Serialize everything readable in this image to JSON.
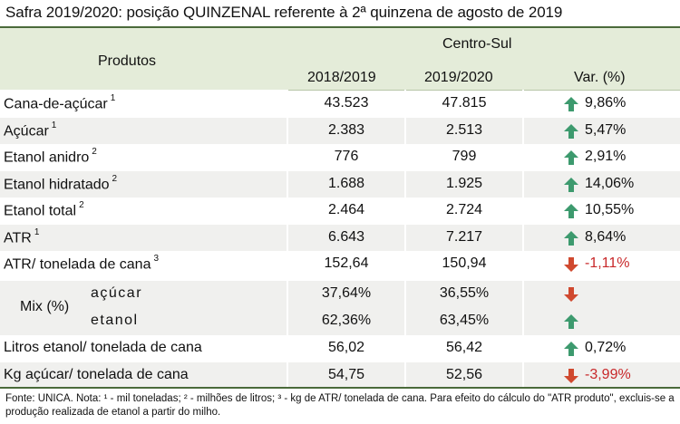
{
  "title": "Safra 2019/2020: posição QUINZENAL referente à 2ª quinzena de agosto de 2019",
  "header": {
    "produtos": "Produtos",
    "region": "Centro-Sul",
    "col1": "2018/2019",
    "col2": "2019/2020",
    "col3": "Var. (%)"
  },
  "rows": [
    {
      "label": "Cana-de-açúcar",
      "sup": "1",
      "v1": "43.523",
      "v2": "47.815",
      "dir": "up",
      "pct": "9,86%"
    },
    {
      "label": "Açúcar",
      "sup": "1",
      "v1": "2.383",
      "v2": "2.513",
      "dir": "up",
      "pct": "5,47%"
    },
    {
      "label": "Etanol anidro",
      "sup": "2",
      "v1": "776",
      "v2": "799",
      "dir": "up",
      "pct": "2,91%"
    },
    {
      "label": "Etanol hidratado",
      "sup": "2",
      "v1": "1.688",
      "v2": "1.925",
      "dir": "up",
      "pct": "14,06%"
    },
    {
      "label": "Etanol total",
      "sup": "2",
      "v1": "2.464",
      "v2": "2.724",
      "dir": "up",
      "pct": "10,55%"
    },
    {
      "label": "ATR",
      "sup": "1",
      "v1": "6.643",
      "v2": "7.217",
      "dir": "up",
      "pct": "8,64%"
    },
    {
      "label": "ATR/ tonelada de cana",
      "sup": "3",
      "v1": "152,64",
      "v2": "150,94",
      "dir": "down",
      "pct": "-1,11%"
    }
  ],
  "mix": {
    "label": "Mix (%)",
    "acucar": {
      "label": "açúcar",
      "v1": "37,64%",
      "v2": "36,55%",
      "dir": "down"
    },
    "etanol": {
      "label": "etanol",
      "v1": "62,36%",
      "v2": "63,45%",
      "dir": "up"
    }
  },
  "rows2": [
    {
      "label": "Litros etanol/ tonelada de cana",
      "v1": "56,02",
      "v2": "56,42",
      "dir": "up",
      "pct": "0,72%"
    },
    {
      "label": "Kg açúcar/ tonelada de cana",
      "v1": "54,75",
      "v2": "52,56",
      "dir": "down",
      "pct": "-3,99%"
    }
  ],
  "footnote": "Fonte: UNICA. Nota: ¹ - mil toneladas; ² - milhões de litros; ³ - kg de ATR/ tonelada de cana. Para efeito do cálculo do \"ATR produto\", excluis-se a produção realizada de etanol a partir do milho.",
  "colors": {
    "up": "#3d9a6e",
    "down": "#d0492f",
    "negative_text": "#c8282a",
    "header_bg": "#e4ecd9"
  },
  "icons": {
    "up": "arrow-up-icon",
    "down": "arrow-down-icon"
  }
}
